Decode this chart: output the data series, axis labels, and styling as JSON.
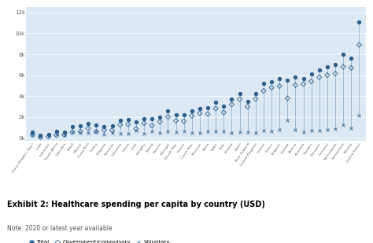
{
  "countries": [
    "China (People's Rep.)",
    "India",
    "Indonesia",
    "South Africa",
    "Colombia",
    "Brazil",
    "Mexico",
    "Costa Rica",
    "Turkey",
    "Bulgaria",
    "Romania",
    "Lithuania",
    "Latvia",
    "Chile",
    "Hungary",
    "Poland",
    "Estonia",
    "Portugal",
    "Slovak Rep.",
    "Greece",
    "Czech Rep.",
    "Slovenia",
    "Korea",
    "Spain",
    "Italy",
    "Finland",
    "Japan",
    "New Zealand",
    "United Kingdom",
    "Ireland",
    "France",
    "Belgium",
    "Canada",
    "Austria",
    "Australia",
    "Sweden",
    "Denmark",
    "Germany",
    "Netherlands",
    "Switzerland",
    "Norway",
    "United States"
  ],
  "total": [
    535,
    209,
    304,
    589,
    577,
    1066,
    1113,
    1340,
    1218,
    1063,
    1160,
    1665,
    1725,
    1560,
    1800,
    1798,
    2000,
    2600,
    2200,
    2200,
    2600,
    2800,
    2900,
    3400,
    3050,
    3700,
    4200,
    3500,
    4200,
    5200,
    5400,
    5700,
    5500,
    5800,
    5700,
    6100,
    6500,
    6800,
    7000,
    8000,
    7600,
    11072
  ],
  "gov_compulsory": [
    299,
    71,
    117,
    251,
    297,
    551,
    607,
    900,
    582,
    742,
    713,
    1240,
    1290,
    850,
    1389,
    1175,
    1534,
    2000,
    1640,
    1580,
    2100,
    2350,
    2280,
    2800,
    2430,
    3200,
    3690,
    2980,
    3720,
    4500,
    4800,
    4950,
    3790,
    5050,
    5150,
    5400,
    5800,
    6000,
    6150,
    6800,
    6700,
    8900
  ],
  "voluntary": [
    230,
    130,
    180,
    330,
    270,
    510,
    500,
    435,
    630,
    320,
    445,
    420,
    430,
    700,
    410,
    620,
    460,
    595,
    560,
    620,
    500,
    450,
    620,
    600,
    620,
    500,
    510,
    520,
    480,
    700,
    600,
    750,
    1710,
    750,
    550,
    700,
    700,
    800,
    850,
    1200,
    900,
    2100
  ],
  "bg_color": "#dce9f5",
  "dot_color": "#2d5f8a",
  "yticks": [
    0,
    2000,
    4000,
    6000,
    8000,
    10000,
    12000
  ],
  "ytick_labels": [
    "0k",
    "2k",
    "4k",
    "6k",
    "8k",
    "10k",
    "12k"
  ],
  "title_below": "Exhibit 2: Healthcare spending per capita by country (USD)",
  "note_below": "Note: 2020 or latest year available",
  "legend_total": "Total",
  "legend_gov": "Government/compulsory",
  "legend_vol": "Voluntary",
  "fig_width": 4.74,
  "fig_height": 3.09,
  "dpi": 100
}
